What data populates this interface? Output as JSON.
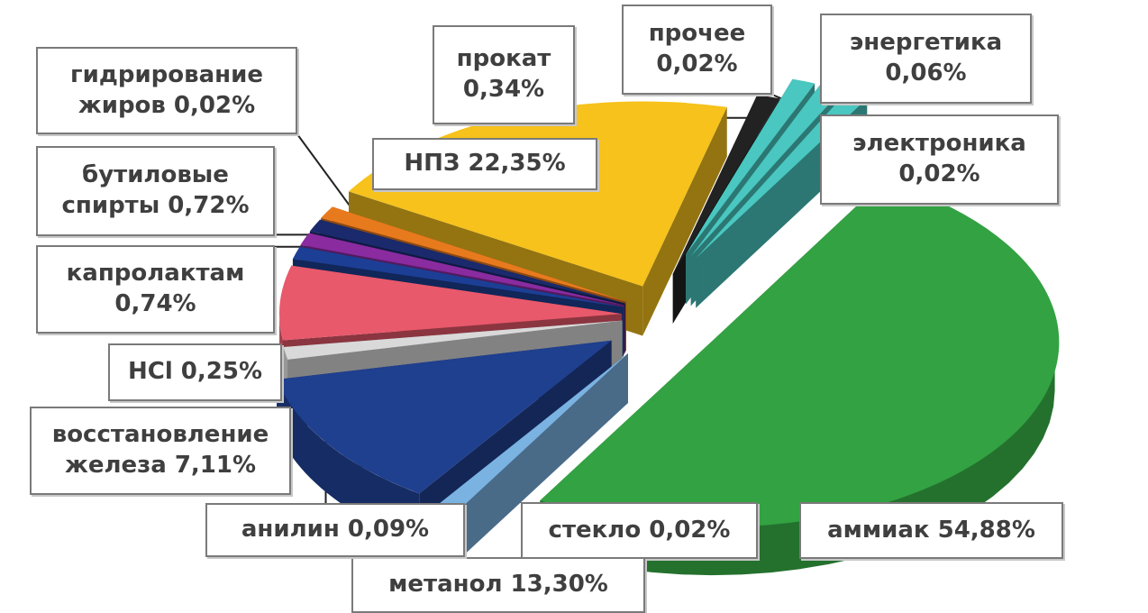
{
  "chart_data": {
    "type": "pie",
    "style": "exploded 3d pie",
    "title": "",
    "slices": [
      {
        "name": "аммиак",
        "value": 54.88,
        "color": "#33a242",
        "label_lines": [
          "аммиак 54,88%"
        ]
      },
      {
        "name": "стекло",
        "value": 0.02,
        "color": "#7ab2e2",
        "label_lines": [
          "стекло 0,02%"
        ]
      },
      {
        "name": "метанол",
        "value": 13.3,
        "color": "#1f3f8f",
        "label_lines": [
          "метанол  13,30%"
        ]
      },
      {
        "name": "анилин",
        "value": 0.09,
        "color": "#d9d9d9",
        "label_lines": [
          "анилин  0,09%"
        ]
      },
      {
        "name": "восстановление железа",
        "value": 7.11,
        "color": "#e8596b",
        "label_lines": [
          "восстановление",
          "железа  7,11%"
        ]
      },
      {
        "name": "HCl",
        "value": 0.25,
        "color": "#1c3f95",
        "label_lines": [
          "HCl 0,25%"
        ]
      },
      {
        "name": "капролактам",
        "value": 0.74,
        "color": "#8a2ba0",
        "label_lines": [
          "капролактам",
          "0,74%"
        ]
      },
      {
        "name": "бутиловые спирты",
        "value": 0.72,
        "color": "#1a2a6c",
        "label_lines": [
          "бутиловые",
          "спирты 0,72%"
        ]
      },
      {
        "name": "гидрирование жиров",
        "value": 0.02,
        "color": "#e87a1e",
        "label_lines": [
          "гидрирование",
          "жиров 0,02%"
        ]
      },
      {
        "name": "НПЗ",
        "value": 22.35,
        "color": "#f6c21b",
        "label_lines": [
          "НПЗ 22,35%"
        ]
      },
      {
        "name": "прокат",
        "value": 0.34,
        "color": "#222222",
        "label_lines": [
          "прокат",
          "0,34%"
        ]
      },
      {
        "name": "прочее",
        "value": 0.02,
        "color": "#49c7c0",
        "label_lines": [
          "прочее",
          "0,02%"
        ]
      },
      {
        "name": "энергетика",
        "value": 0.06,
        "color": "#49c7c0",
        "label_lines": [
          "энергетика",
          "0,06%"
        ]
      },
      {
        "name": "электроника",
        "value": 0.02,
        "color": "#49c7c0",
        "label_lines": [
          "электроника",
          "0,02%"
        ]
      }
    ]
  }
}
